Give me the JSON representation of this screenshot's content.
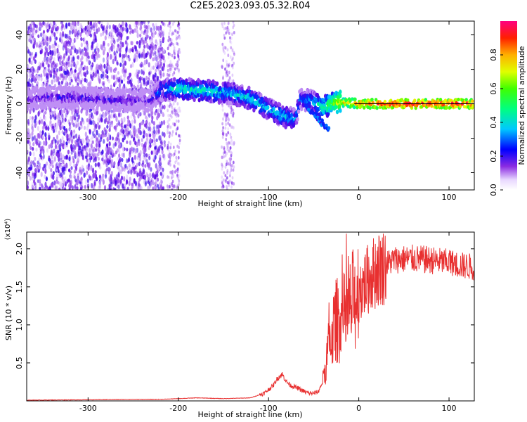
{
  "title": "C2E5.2023.093.05.32.R04",
  "colors": {
    "spectrum_core": "#4a00d8",
    "spectrum_mid": "#9b5cf0",
    "spectrum_faint": "#d8c2f7",
    "snr_line": "#e83030"
  },
  "chart_data": [
    {
      "type": "heatmap",
      "xlabel": "Height of straight line (km)",
      "ylabel": "Frequency (Hz)",
      "xlim": [
        -368,
        128
      ],
      "ylim": [
        -50,
        48
      ],
      "xticks": [
        -300,
        -200,
        -100,
        0,
        100
      ],
      "yticks": [
        -40,
        -20,
        0,
        20,
        40
      ],
      "colorbar": {
        "label": "Normalized spectral amplitude",
        "range": [
          0,
          1
        ],
        "ticks": [
          "0.0",
          "0.2",
          "0.4",
          "0.6",
          "0.8"
        ],
        "tick_values": [
          0,
          0.2,
          0.4,
          0.6,
          0.8
        ]
      },
      "ridge": {
        "x": [
          -365,
          -330,
          -300,
          -260,
          -230,
          -220,
          -200,
          -180,
          -160,
          -140,
          -120,
          -100,
          -85,
          -70,
          -65,
          -50,
          -40,
          -30,
          -20,
          0,
          50,
          100,
          128
        ],
        "freq": [
          3,
          4,
          3,
          2,
          2,
          8,
          9,
          8,
          7,
          6,
          3,
          -3,
          -7,
          -9,
          3,
          1,
          -2,
          0,
          1,
          0,
          0,
          0,
          0
        ],
        "amplitude": [
          0.15,
          0.2,
          0.2,
          0.18,
          0.15,
          0.35,
          0.45,
          0.45,
          0.45,
          0.4,
          0.45,
          0.4,
          0.45,
          0.35,
          0.3,
          0.4,
          0.5,
          0.6,
          0.75,
          0.9,
          0.95,
          0.95,
          0.95
        ]
      }
    },
    {
      "type": "line",
      "xlabel": "Height of straight line (km)",
      "ylabel": "SNR (10 * v/v)",
      "yscale_label": "(x10⁴)",
      "xlim": [
        -368,
        128
      ],
      "ylim": [
        0,
        2.22
      ],
      "xticks": [
        -300,
        -200,
        -100,
        0,
        100
      ],
      "yticks": [
        0.5,
        1.0,
        1.5,
        2.0
      ],
      "ytick_labels": [
        "0.5",
        "1.0",
        "1.5",
        "2.0"
      ],
      "series": [
        {
          "x": [
            -368,
            -300,
            -250,
            -220,
            -200,
            -180,
            -150,
            -120,
            -105,
            -100,
            -95,
            -90,
            -85,
            -80,
            -75,
            -70,
            -65,
            -60,
            -55,
            -50,
            -45,
            -40,
            -35,
            -30,
            -25,
            -20,
            -15,
            -10,
            -5,
            0,
            10,
            20,
            30,
            40,
            60,
            80,
            100,
            115,
            128
          ],
          "y": [
            0.01,
            0.015,
            0.02,
            0.02,
            0.03,
            0.04,
            0.03,
            0.04,
            0.1,
            0.15,
            0.2,
            0.3,
            0.35,
            0.25,
            0.2,
            0.18,
            0.15,
            0.12,
            0.1,
            0.1,
            0.12,
            0.25,
            0.6,
            0.9,
            1.05,
            1.1,
            1.1,
            1.2,
            1.35,
            1.45,
            1.6,
            1.72,
            1.8,
            1.86,
            1.87,
            1.85,
            1.82,
            1.78,
            1.76
          ]
        }
      ]
    }
  ]
}
